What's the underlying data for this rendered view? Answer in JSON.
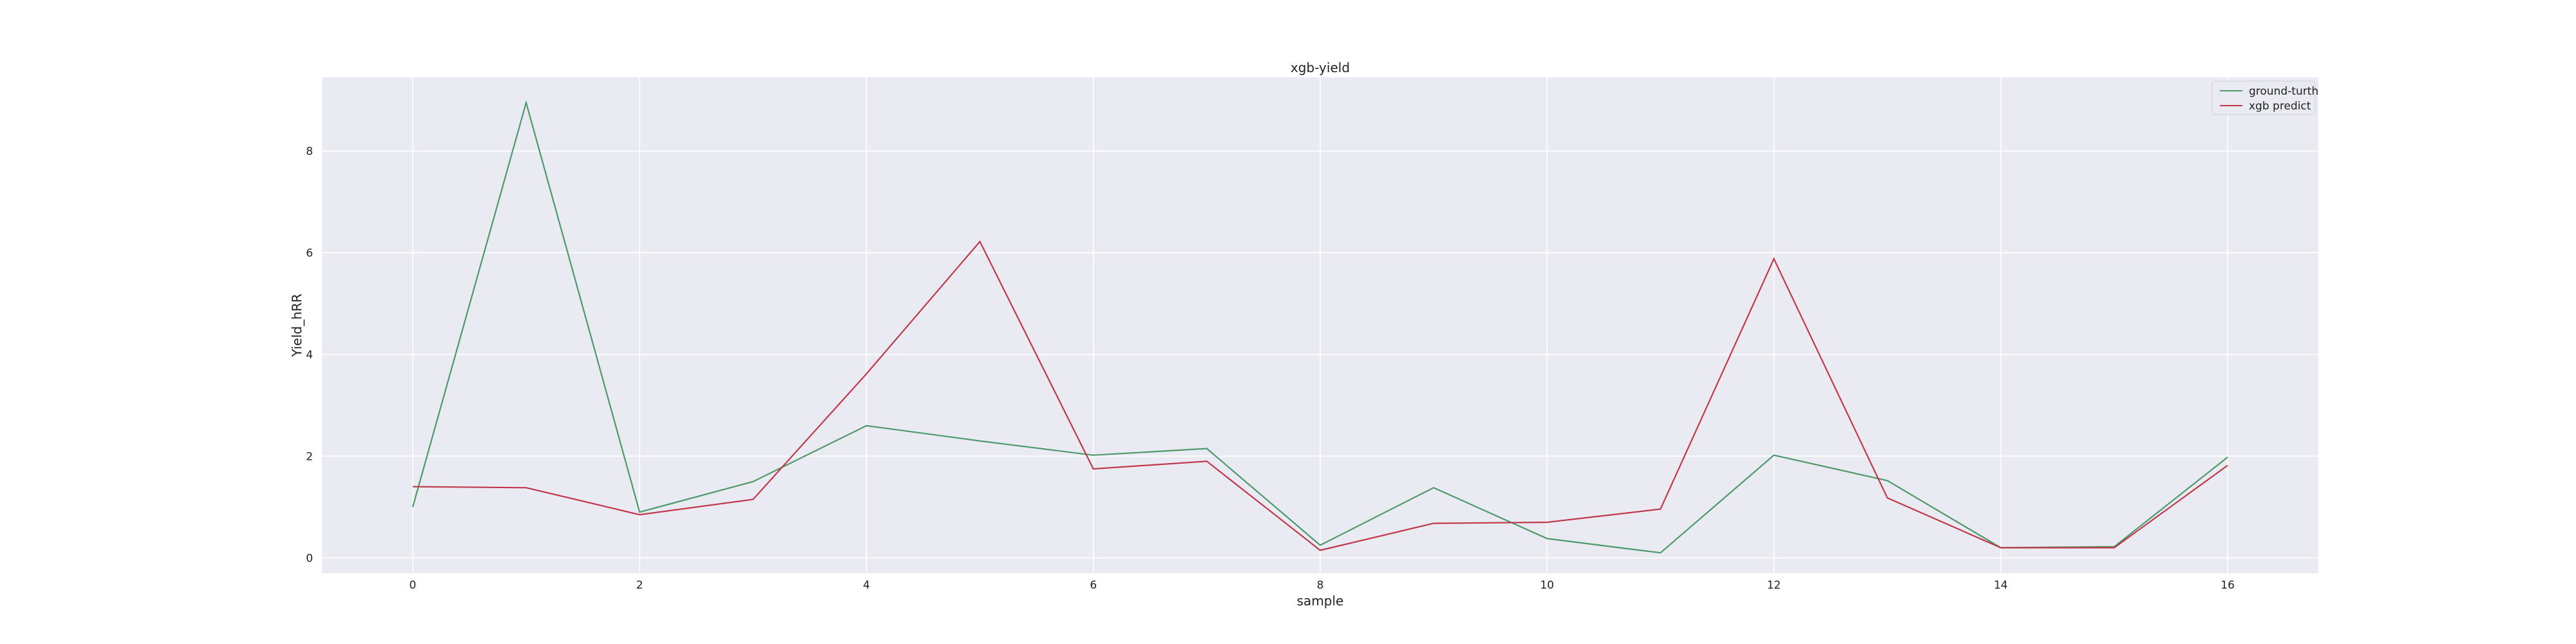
{
  "chart_data": {
    "type": "line",
    "title": "xgb-yield",
    "xlabel": "sample",
    "ylabel": "Yield_hRR",
    "x": [
      0,
      1,
      2,
      3,
      4,
      5,
      6,
      7,
      8,
      9,
      10,
      11,
      12,
      13,
      14,
      15,
      16
    ],
    "xlim": [
      -0.8,
      16.8
    ],
    "ylim": [
      -0.3,
      9.45
    ],
    "xticks": [
      0,
      2,
      4,
      6,
      8,
      10,
      12,
      14,
      16
    ],
    "yticks": [
      0,
      2,
      4,
      6,
      8
    ],
    "grid": true,
    "background": "#eaeaf2",
    "legend_position": "upper right",
    "series": [
      {
        "name": "ground-turth",
        "color": "#4c9a6a",
        "values": [
          1.0,
          8.95,
          0.9,
          1.5,
          2.6,
          2.3,
          2.02,
          2.15,
          0.25,
          1.38,
          0.38,
          0.1,
          2.02,
          1.52,
          0.2,
          0.22,
          1.98
        ]
      },
      {
        "name": "xgb predict",
        "color": "#c0394b",
        "values": [
          1.4,
          1.38,
          0.85,
          1.15,
          3.62,
          6.22,
          1.75,
          1.9,
          0.15,
          0.68,
          0.7,
          0.96,
          5.88,
          1.18,
          0.2,
          0.2,
          1.82
        ]
      }
    ]
  }
}
